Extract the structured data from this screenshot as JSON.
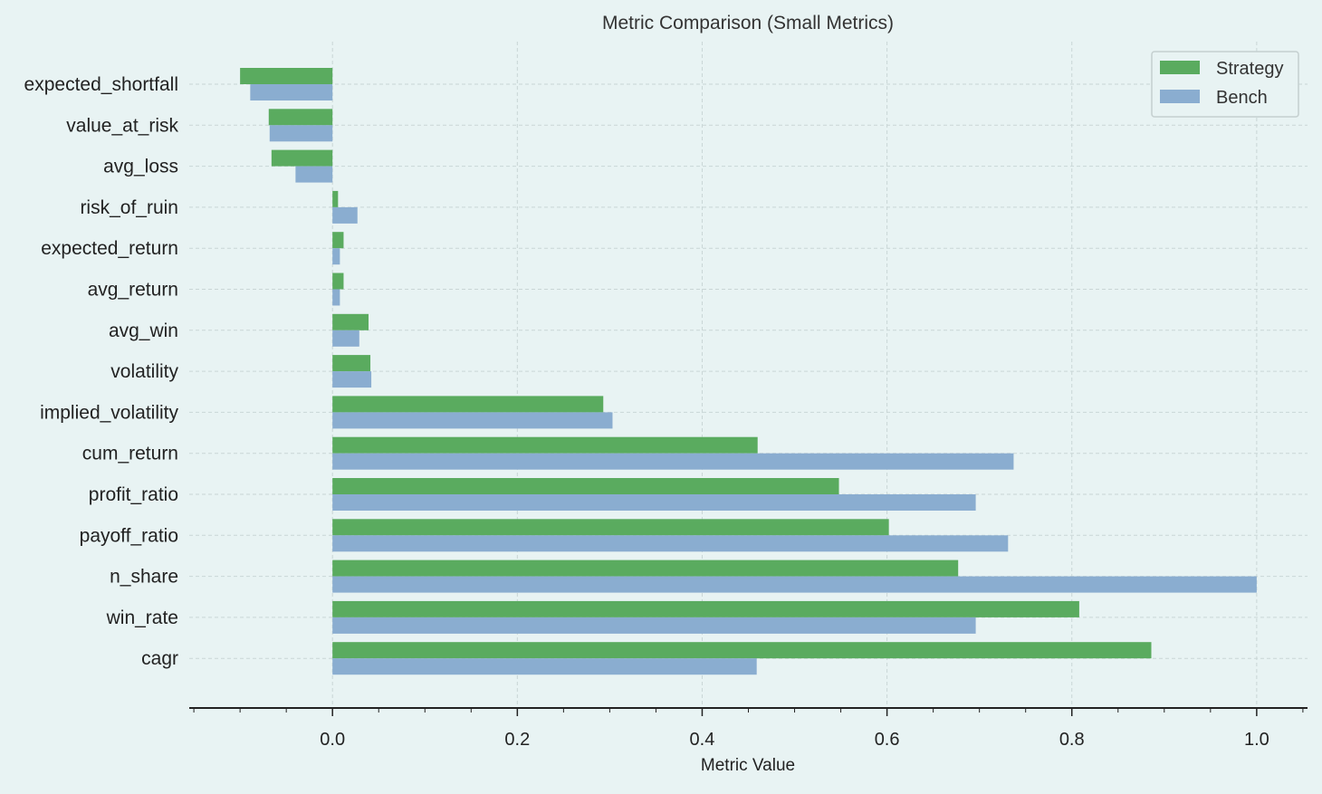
{
  "chart_data": {
    "type": "bar",
    "orientation": "horizontal",
    "title": "Metric Comparison (Small Metrics)",
    "xlabel": "Metric Value",
    "ylabel": "",
    "xlim": [
      -0.155,
      1.055
    ],
    "xticks": [
      0.0,
      0.2,
      0.4,
      0.6,
      0.8,
      1.0
    ],
    "xtick_labels": [
      "0.0",
      "0.2",
      "0.4",
      "0.6",
      "0.8",
      "1.0"
    ],
    "grid": true,
    "legend_position": "top-right",
    "categories": [
      "expected_shortfall",
      "value_at_risk",
      "avg_loss",
      "risk_of_ruin",
      "expected_return",
      "avg_return",
      "avg_win",
      "volatility",
      "implied_volatility",
      "cum_return",
      "profit_ratio",
      "payoff_ratio",
      "n_share",
      "win_rate",
      "cagr"
    ],
    "series": [
      {
        "name": "Strategy",
        "color": "#5aab5f",
        "values": [
          -0.1,
          -0.069,
          -0.066,
          0.006,
          0.012,
          0.012,
          0.039,
          0.041,
          0.293,
          0.46,
          0.548,
          0.602,
          0.677,
          0.808,
          0.886
        ]
      },
      {
        "name": "Bench",
        "color": "#8aadd0",
        "values": [
          -0.089,
          -0.068,
          -0.04,
          0.027,
          0.008,
          0.008,
          0.029,
          0.042,
          0.303,
          0.737,
          0.696,
          0.731,
          1.0,
          0.696,
          0.459
        ]
      }
    ]
  }
}
